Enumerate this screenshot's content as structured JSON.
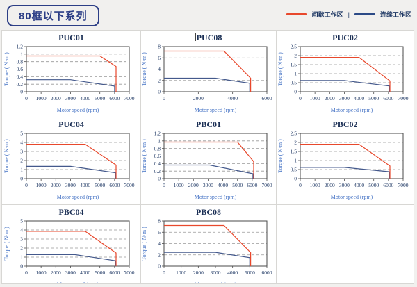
{
  "page": {
    "title": "80框以下系列"
  },
  "legend": {
    "separator": "|",
    "items": [
      {
        "key": "intermittent",
        "label": "间歇工作区",
        "color": "#e8482c"
      },
      {
        "key": "continuous",
        "label": "连续工作区",
        "color": "#2c4a86"
      }
    ]
  },
  "colors": {
    "page_background": "#f1f0ee",
    "panel_background": "#ffffff",
    "grid_border": "#d8d7d4",
    "plot_border": "#4a4a4a",
    "gridline": "#999999",
    "tick_text": "#1f3864",
    "axis_label_text": "#4472c4",
    "badge": "#2c3e86"
  },
  "chart_data": [
    {
      "type": "line",
      "title": "PUC01",
      "caret": false,
      "xlabel": "Motor speed (rpm)",
      "ylabel": "Torque ( N·m )",
      "xlim": [
        0,
        7000
      ],
      "ylim": [
        0,
        1.2
      ],
      "xticks": [
        0,
        1000,
        2000,
        3000,
        4000,
        5000,
        6000,
        7000
      ],
      "yticks": [
        0,
        0.2,
        0.4,
        0.6,
        0.8,
        1,
        1.2
      ],
      "grid": "horizontal-dashed",
      "legend_position": "none",
      "series": [
        {
          "key": "intermittent-line",
          "name": "间歇工作区",
          "color": "#e8482c",
          "points": [
            [
              0,
              0.95
            ],
            [
              5000,
              0.95
            ],
            [
              6100,
              0.67
            ],
            [
              6100,
              0
            ]
          ]
        },
        {
          "key": "continuous-line",
          "name": "连续工作区",
          "color": "#44598c",
          "points": [
            [
              0,
              0.32
            ],
            [
              3000,
              0.32
            ],
            [
              6000,
              0.15
            ],
            [
              6000,
              0
            ]
          ]
        }
      ]
    },
    {
      "type": "line",
      "title": "PUC08",
      "caret": true,
      "xlabel": "Motor speed (rpm)",
      "ylabel": "Torque ( N·m )",
      "xlim": [
        0,
        6000
      ],
      "ylim": [
        0,
        8
      ],
      "xticks": [
        0,
        2000,
        4000,
        6000
      ],
      "yticks": [
        0,
        2,
        4,
        6,
        8
      ],
      "grid": "horizontal-dashed",
      "legend_position": "none",
      "series": [
        {
          "key": "intermittent-line",
          "name": "间歇工作区",
          "color": "#e8482c",
          "points": [
            [
              0,
              7.2
            ],
            [
              3500,
              7.2
            ],
            [
              5050,
              2.4
            ],
            [
              5050,
              0
            ]
          ]
        },
        {
          "key": "continuous-line",
          "name": "连续工作区",
          "color": "#44598c",
          "points": [
            [
              0,
              2.4
            ],
            [
              3000,
              2.4
            ],
            [
              5000,
              1.5
            ],
            [
              5000,
              0
            ]
          ]
        }
      ]
    },
    {
      "type": "line",
      "title": "PUC02",
      "caret": false,
      "xlabel": "Motor speed (rpm)",
      "ylabel": "Torque ( N·m )",
      "xlim": [
        0,
        7000
      ],
      "ylim": [
        0,
        2.5
      ],
      "xticks": [
        0,
        1000,
        2000,
        3000,
        4000,
        5000,
        6000,
        7000
      ],
      "yticks": [
        0,
        0.5,
        1,
        1.5,
        2,
        2.5
      ],
      "grid": "horizontal-dashed",
      "legend_position": "none",
      "series": [
        {
          "key": "intermittent-line",
          "name": "间歇工作区",
          "color": "#e8482c",
          "points": [
            [
              0,
              1.9
            ],
            [
              4000,
              1.9
            ],
            [
              6100,
              0.6
            ],
            [
              6100,
              0
            ]
          ]
        },
        {
          "key": "continuous-line",
          "name": "连续工作区",
          "color": "#44598c",
          "points": [
            [
              0,
              0.62
            ],
            [
              3000,
              0.62
            ],
            [
              6050,
              0.32
            ],
            [
              6050,
              0
            ]
          ]
        }
      ]
    },
    {
      "type": "line",
      "title": "PUC04",
      "caret": false,
      "xlabel": "Motor speed (rpm)",
      "ylabel": "Torque ( N·m )",
      "xlim": [
        0,
        7000
      ],
      "ylim": [
        0,
        5
      ],
      "xticks": [
        0,
        1000,
        2000,
        3000,
        4000,
        5000,
        6000,
        7000
      ],
      "yticks": [
        0,
        1,
        2,
        3,
        4,
        5
      ],
      "grid": "horizontal-dashed",
      "legend_position": "none",
      "series": [
        {
          "key": "intermittent-line",
          "name": "间歇工作区",
          "color": "#e8482c",
          "points": [
            [
              0,
              3.8
            ],
            [
              4000,
              3.8
            ],
            [
              6100,
              1.5
            ],
            [
              6100,
              0
            ]
          ]
        },
        {
          "key": "continuous-line",
          "name": "连续工作区",
          "color": "#44598c",
          "points": [
            [
              0,
              1.35
            ],
            [
              3000,
              1.35
            ],
            [
              6050,
              0.65
            ],
            [
              6050,
              0
            ]
          ]
        }
      ]
    },
    {
      "type": "line",
      "title": "PBC01",
      "caret": false,
      "xlabel": "Motor speed (rpm)",
      "ylabel": "Torque ( N·m )",
      "xlim": [
        0,
        7000
      ],
      "ylim": [
        0,
        1.2
      ],
      "xticks": [
        0,
        1000,
        2000,
        3000,
        4000,
        5000,
        6000,
        7000
      ],
      "yticks": [
        0,
        0.2,
        0.4,
        0.6,
        0.8,
        1,
        1.2
      ],
      "grid": "horizontal-dashed",
      "legend_position": "none",
      "series": [
        {
          "key": "intermittent-line",
          "name": "间歇工作区",
          "color": "#e8482c",
          "points": [
            [
              0,
              0.97
            ],
            [
              5000,
              0.97
            ],
            [
              6100,
              0.45
            ],
            [
              6100,
              0
            ]
          ]
        },
        {
          "key": "continuous-line",
          "name": "连续工作区",
          "color": "#44598c",
          "points": [
            [
              0,
              0.36
            ],
            [
              3100,
              0.36
            ],
            [
              6050,
              0.13
            ],
            [
              6050,
              0
            ]
          ]
        }
      ]
    },
    {
      "type": "line",
      "title": "PBC02",
      "caret": false,
      "xlabel": "Motor speed (rpm)",
      "ylabel": "Torque ( N·m )",
      "xlim": [
        0,
        7000
      ],
      "ylim": [
        0,
        2.5
      ],
      "xticks": [
        0,
        1000,
        2000,
        3000,
        4000,
        5000,
        6000,
        7000
      ],
      "yticks": [
        0,
        0.5,
        1,
        1.5,
        2,
        2.5
      ],
      "grid": "horizontal-dashed",
      "legend_position": "none",
      "series": [
        {
          "key": "intermittent-line",
          "name": "间歇工作区",
          "color": "#e8482c",
          "points": [
            [
              0,
              1.9
            ],
            [
              4000,
              1.9
            ],
            [
              6100,
              0.7
            ],
            [
              6100,
              0
            ]
          ]
        },
        {
          "key": "continuous-line",
          "name": "连续工作区",
          "color": "#44598c",
          "points": [
            [
              0,
              0.62
            ],
            [
              3000,
              0.62
            ],
            [
              6050,
              0.38
            ],
            [
              6050,
              0
            ]
          ]
        }
      ]
    },
    {
      "type": "line",
      "title": "PBC04",
      "caret": false,
      "xlabel": "Motor speed (rpm)",
      "ylabel": "Torque ( N·m )",
      "xlim": [
        0,
        7000
      ],
      "ylim": [
        0,
        5
      ],
      "xticks": [
        0,
        1000,
        2000,
        3000,
        4000,
        5000,
        6000,
        7000
      ],
      "yticks": [
        0,
        1,
        2,
        3,
        4,
        5
      ],
      "grid": "horizontal-dashed",
      "legend_position": "none",
      "series": [
        {
          "key": "intermittent-line",
          "name": "间歇工作区",
          "color": "#e8482c",
          "points": [
            [
              0,
              3.85
            ],
            [
              4000,
              3.85
            ],
            [
              6100,
              1.45
            ],
            [
              6100,
              0
            ]
          ]
        },
        {
          "key": "continuous-line",
          "name": "连续工作区",
          "color": "#44598c",
          "points": [
            [
              0,
              1.28
            ],
            [
              3300,
              1.28
            ],
            [
              6050,
              0.6
            ],
            [
              6050,
              0
            ]
          ]
        }
      ]
    },
    {
      "type": "line",
      "title": "PBC08",
      "caret": false,
      "xlabel": "Motor speed (rpm)",
      "ylabel": "Torque ( N·m )",
      "xlim": [
        0,
        6000
      ],
      "ylim": [
        0,
        8
      ],
      "xticks": [
        0,
        1000,
        2000,
        3000,
        4000,
        5000,
        6000
      ],
      "yticks": [
        0,
        2,
        4,
        6,
        8
      ],
      "grid": "horizontal-dashed",
      "legend_position": "none",
      "series": [
        {
          "key": "intermittent-line",
          "name": "间歇工作区",
          "color": "#e8482c",
          "points": [
            [
              0,
              7.2
            ],
            [
              3500,
              7.2
            ],
            [
              5050,
              2.4
            ],
            [
              5050,
              0
            ]
          ]
        },
        {
          "key": "continuous-line",
          "name": "连续工作区",
          "color": "#44598c",
          "points": [
            [
              0,
              2.45
            ],
            [
              3000,
              2.45
            ],
            [
              5000,
              1.5
            ],
            [
              5000,
              0
            ]
          ]
        }
      ]
    }
  ]
}
